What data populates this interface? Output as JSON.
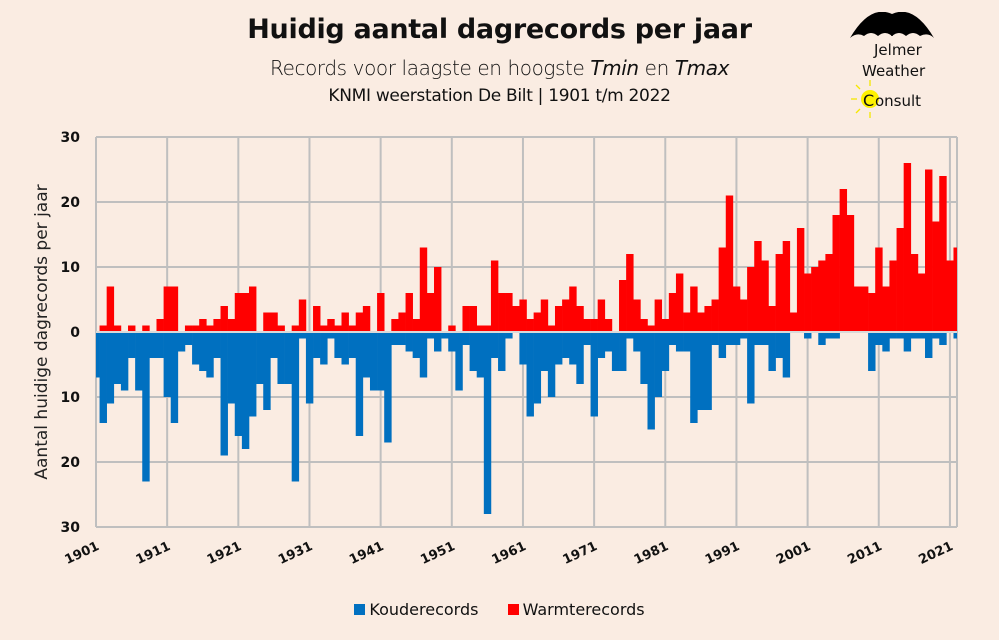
{
  "header": {
    "title": "Huidig aantal dagrecords per jaar",
    "subtitle_prefix": "Records voor laagste en hoogste ",
    "subtitle_tmin": "Tmin",
    "subtitle_mid": " en ",
    "subtitle_tmax": "Tmax",
    "source": "KNMI weerstation De Bilt | 1901 t/m 2022"
  },
  "logo": {
    "line1": "Jelmer",
    "line2": "Weather",
    "line3_initial": "C",
    "line3_rest": "onsult",
    "icons": [
      "umbrella-icon",
      "sun-icon"
    ]
  },
  "colors": {
    "background": "#FAECE2",
    "cold": "#0070C0",
    "warm": "#FF0000",
    "grid": "#BFBFBF"
  },
  "chart_data": {
    "type": "bar",
    "title": "Huidig aantal dagrecords per jaar",
    "xlabel": "",
    "ylabel": "Aantal huidige dagrecords per jaar",
    "ylim": [
      -30,
      30
    ],
    "yticks": [
      30,
      20,
      10,
      0,
      -10,
      -20,
      -30
    ],
    "ytick_labels": [
      "30",
      "20",
      "10",
      "0",
      "10",
      "20",
      "30"
    ],
    "xlim": [
      1901,
      2022
    ],
    "xtick_labels": [
      "1901",
      "1911",
      "1921",
      "1931",
      "1941",
      "1951",
      "1961",
      "1971",
      "1981",
      "1991",
      "2001",
      "2011",
      "2021"
    ],
    "grid": true,
    "legend_position": "bottom",
    "x_start": 1901,
    "series": [
      {
        "name": "Kouderecords",
        "color": "#0070C0",
        "direction": "down",
        "values": [
          7,
          14,
          11,
          8,
          9,
          4,
          9,
          23,
          4,
          4,
          10,
          14,
          3,
          2,
          5,
          6,
          7,
          4,
          19,
          11,
          16,
          18,
          13,
          8,
          12,
          4,
          8,
          8,
          23,
          1,
          11,
          4,
          5,
          1,
          4,
          5,
          4,
          16,
          7,
          9,
          9,
          17,
          2,
          2,
          3,
          4,
          7,
          1,
          3,
          1,
          3,
          9,
          2,
          6,
          7,
          28,
          4,
          6,
          1,
          0,
          5,
          13,
          11,
          6,
          10,
          5,
          4,
          5,
          8,
          2,
          13,
          4,
          3,
          6,
          6,
          1,
          3,
          8,
          15,
          10,
          6,
          2,
          3,
          3,
          14,
          12,
          12,
          2,
          4,
          2,
          2,
          1,
          11,
          2,
          2,
          6,
          4,
          7,
          0,
          0,
          1,
          0,
          2,
          1,
          1,
          0,
          0,
          0,
          0,
          6,
          2,
          3,
          1,
          1,
          3,
          1,
          1,
          4,
          1,
          2,
          0,
          1
        ]
      },
      {
        "name": "Warmterecords",
        "color": "#FF0000",
        "direction": "up",
        "values": [
          0,
          1,
          7,
          1,
          0,
          1,
          0,
          1,
          0,
          2,
          7,
          7,
          0,
          1,
          1,
          2,
          1,
          2,
          4,
          2,
          6,
          6,
          7,
          0,
          3,
          3,
          1,
          0,
          1,
          5,
          0,
          4,
          1,
          2,
          1,
          3,
          1,
          3,
          4,
          0,
          6,
          0,
          2,
          3,
          6,
          2,
          13,
          6,
          10,
          0,
          1,
          0,
          4,
          4,
          1,
          1,
          11,
          6,
          6,
          4,
          5,
          2,
          3,
          5,
          1,
          4,
          5,
          7,
          4,
          2,
          2,
          5,
          2,
          0,
          8,
          12,
          5,
          2,
          1,
          5,
          2,
          6,
          9,
          3,
          7,
          3,
          4,
          5,
          13,
          21,
          7,
          5,
          10,
          14,
          11,
          4,
          12,
          14,
          3,
          16,
          9,
          10,
          11,
          12,
          18,
          22,
          18,
          7,
          7,
          6,
          13,
          7,
          11,
          16,
          26,
          12,
          9,
          25,
          17,
          24,
          11,
          13
        ]
      }
    ]
  }
}
